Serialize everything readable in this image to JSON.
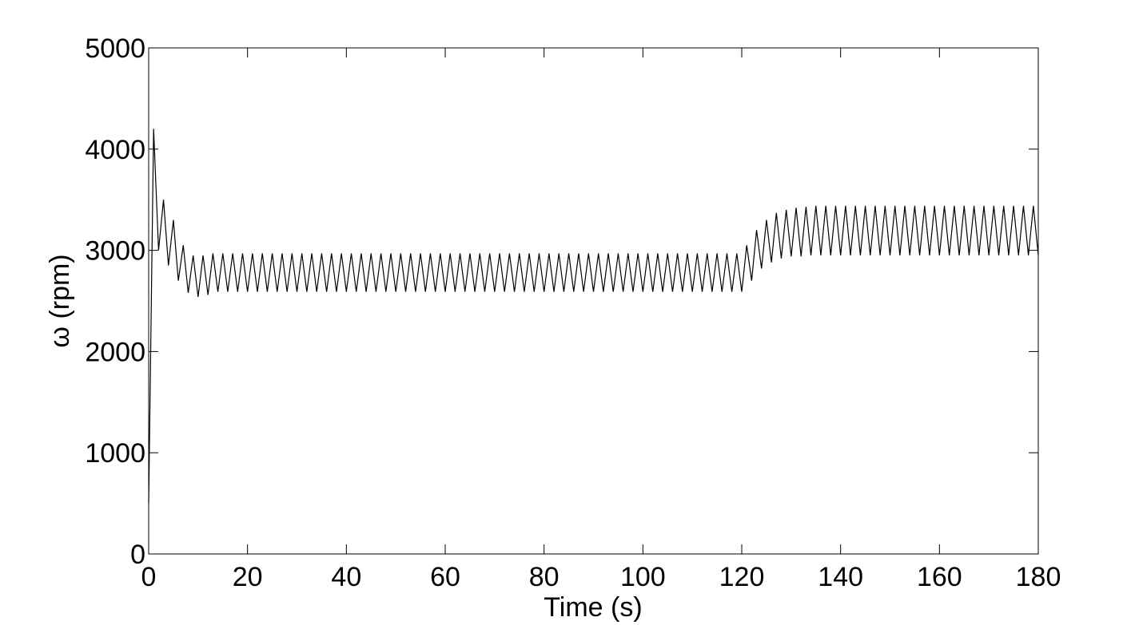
{
  "chart_data": {
    "type": "line",
    "xlabel": "Time (s)",
    "ylabel": "ω (rpm)",
    "xlim": [
      0,
      180
    ],
    "xticks": [
      0,
      20,
      40,
      60,
      80,
      100,
      120,
      140,
      160,
      180
    ],
    "ylim": [
      0,
      5000
    ],
    "yticks": [
      0,
      1000,
      2000,
      3000,
      4000,
      5000
    ],
    "series": [
      {
        "color": "#000000",
        "x": [
          0,
          1,
          2,
          3,
          4,
          5,
          6,
          7,
          8,
          9,
          10,
          11,
          12,
          13,
          14,
          15,
          16,
          17,
          18,
          19,
          20,
          21,
          22,
          23,
          24,
          25,
          26,
          27,
          28,
          29,
          30,
          31,
          32,
          33,
          34,
          35,
          36,
          37,
          38,
          39,
          40,
          41,
          42,
          43,
          44,
          45,
          46,
          47,
          48,
          49,
          50,
          51,
          52,
          53,
          54,
          55,
          56,
          57,
          58,
          59,
          60,
          61,
          62,
          63,
          64,
          65,
          66,
          67,
          68,
          69,
          70,
          71,
          72,
          73,
          74,
          75,
          76,
          77,
          78,
          79,
          80,
          81,
          82,
          83,
          84,
          85,
          86,
          87,
          88,
          89,
          90,
          91,
          92,
          93,
          94,
          95,
          96,
          97,
          98,
          99,
          100,
          101,
          102,
          103,
          104,
          105,
          106,
          107,
          108,
          109,
          110,
          111,
          112,
          113,
          114,
          115,
          116,
          117,
          118,
          119,
          120,
          121,
          122,
          123,
          124,
          125,
          126,
          127,
          128,
          129,
          130,
          131,
          132,
          133,
          134,
          135,
          136,
          137,
          138,
          139,
          140,
          141,
          142,
          143,
          144,
          145,
          146,
          147,
          148,
          149,
          150,
          151,
          152,
          153,
          154,
          155,
          156,
          157,
          158,
          159,
          160,
          161,
          162,
          163,
          164,
          165,
          166,
          167,
          168,
          169,
          170,
          171,
          172,
          173,
          174,
          175,
          176,
          177,
          178,
          179,
          180
        ],
        "values": [
          500,
          4200,
          3000,
          3500,
          2850,
          3300,
          2700,
          3050,
          2580,
          2950,
          2540,
          2950,
          2560,
          2970,
          2590,
          2970,
          2590,
          2970,
          2590,
          2970,
          2590,
          2970,
          2590,
          2970,
          2590,
          2970,
          2590,
          2970,
          2590,
          2970,
          2590,
          2970,
          2590,
          2970,
          2590,
          2970,
          2590,
          2970,
          2590,
          2970,
          2590,
          2970,
          2590,
          2970,
          2590,
          2970,
          2590,
          2970,
          2590,
          2970,
          2590,
          2970,
          2590,
          2970,
          2590,
          2970,
          2590,
          2970,
          2590,
          2970,
          2590,
          2970,
          2590,
          2970,
          2590,
          2970,
          2590,
          2970,
          2590,
          2970,
          2590,
          2970,
          2590,
          2970,
          2590,
          2970,
          2590,
          2970,
          2590,
          2970,
          2590,
          2970,
          2590,
          2970,
          2590,
          2970,
          2590,
          2970,
          2590,
          2970,
          2590,
          2970,
          2590,
          2970,
          2590,
          2970,
          2590,
          2970,
          2590,
          2970,
          2590,
          2970,
          2590,
          2970,
          2590,
          2970,
          2590,
          2970,
          2590,
          2970,
          2590,
          2970,
          2590,
          2970,
          2590,
          2970,
          2590,
          2970,
          2590,
          2970,
          2590,
          3050,
          2700,
          3200,
          2820,
          3300,
          2880,
          3370,
          2920,
          3400,
          2940,
          3420,
          2940,
          3430,
          2950,
          3440,
          2950,
          3440,
          2950,
          3440,
          2950,
          3440,
          2950,
          3440,
          2950,
          3440,
          2950,
          3440,
          2950,
          3440,
          2950,
          3440,
          2950,
          3440,
          2950,
          3440,
          2950,
          3440,
          2950,
          3440,
          2950,
          3440,
          2950,
          3440,
          2950,
          3440,
          2950,
          3440,
          2950,
          3440,
          2950,
          3440,
          2950,
          3440,
          2950,
          3440,
          2950,
          3440,
          2950,
          3440,
          2950
        ]
      }
    ]
  }
}
